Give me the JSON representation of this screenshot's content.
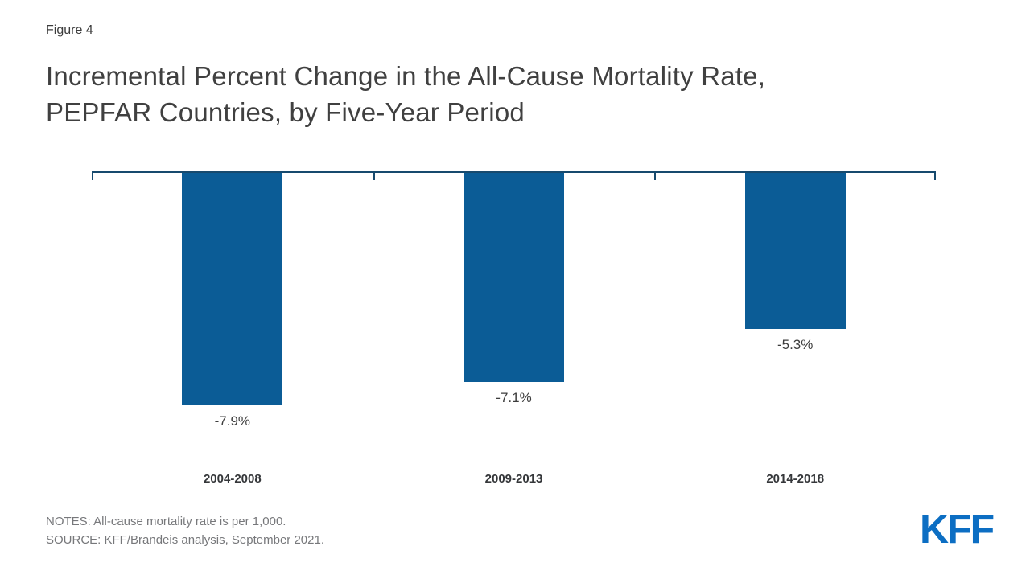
{
  "figure_label": "Figure 4",
  "title": {
    "line1": "Incremental Percent Change in the All-Cause Mortality Rate,",
    "line2": "PEPFAR Countries, by Five-Year Period"
  },
  "chart_data": {
    "type": "bar",
    "categories": [
      "2004-2008",
      "2009-2013",
      "2014-2018"
    ],
    "values": [
      -7.9,
      -7.1,
      -5.3
    ],
    "value_labels": [
      "-7.9%",
      "-7.1%",
      "-5.3%"
    ],
    "title": "Incremental Percent Change in the All-Cause Mortality Rate, PEPFAR Countries, by Five-Year Period",
    "xlabel": "",
    "ylabel": "",
    "ylim": [
      -8.5,
      0
    ],
    "grid": false,
    "legend": "none",
    "orientation": "vertical-negative-from-top-axis",
    "bar_color": "#0b5c96",
    "axis_color": "#174a6e",
    "value_label_color": "#3d3d3d"
  },
  "footer": {
    "notes": "NOTES: All-cause mortality rate is per 1,000.",
    "source": "SOURCE: KFF/Brandeis analysis,  September 2021.",
    "logo_text": "KFF",
    "logo_color": "#0c6ec3"
  }
}
